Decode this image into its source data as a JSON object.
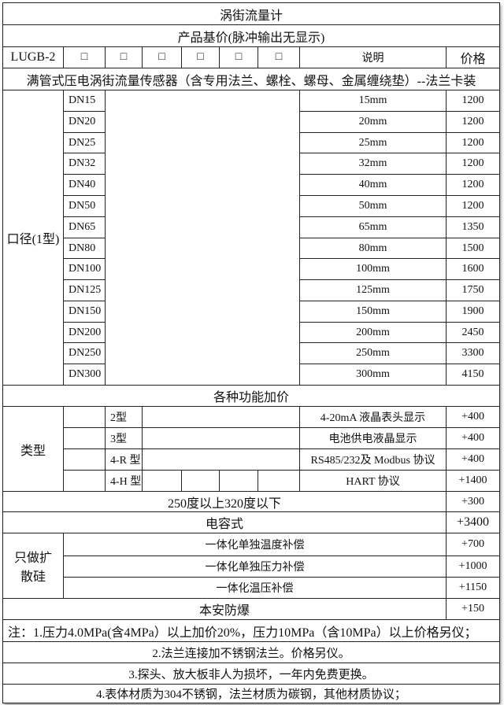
{
  "title": "涡街流量计",
  "base_price_header": "产品基价(脉冲输出无显示)",
  "model_row": {
    "model": "LUGB-2",
    "checkboxes": [
      "□",
      "□",
      "□",
      "□",
      "□",
      "□"
    ],
    "desc_header": "说明",
    "price_header": "价格"
  },
  "sensor_desc": "满管式压电涡街流量传感器（含专用法兰、螺栓、螺母、金属缠绕垫）--法兰卡装",
  "caliber": {
    "label": "口径(1型)",
    "rows": [
      {
        "dn": "DN15",
        "size": "15mm",
        "price": "1200"
      },
      {
        "dn": "DN20",
        "size": "20mm",
        "price": "1200"
      },
      {
        "dn": "DN25",
        "size": "25mm",
        "price": "1200"
      },
      {
        "dn": "DN32",
        "size": "32mm",
        "price": "1200"
      },
      {
        "dn": "DN40",
        "size": "40mm",
        "price": "1200"
      },
      {
        "dn": "DN50",
        "size": "50mm",
        "price": "1200"
      },
      {
        "dn": "DN65",
        "size": "65mm",
        "price": "1350"
      },
      {
        "dn": "DN80",
        "size": "80mm",
        "price": "1500"
      },
      {
        "dn": "DN100",
        "size": "100mm",
        "price": "1600"
      },
      {
        "dn": "DN125",
        "size": "125mm",
        "price": "1750"
      },
      {
        "dn": "DN150",
        "size": "150mm",
        "price": "1900"
      },
      {
        "dn": "DN200",
        "size": "200mm",
        "price": "2450"
      },
      {
        "dn": "DN250",
        "size": "250mm",
        "price": "3300"
      },
      {
        "dn": "DN300",
        "size": "300mm",
        "price": "4150"
      }
    ]
  },
  "options_header": "各种功能加价",
  "types": {
    "label": "类型",
    "rows": [
      {
        "code": "2型",
        "desc": "4-20mA  液晶表头显示",
        "price": "+400"
      },
      {
        "code": "3型",
        "desc": "电池供电液晶显示",
        "price": "+400"
      },
      {
        "code": "4-R 型",
        "desc": "RS485/232及 Modbus 协议",
        "price": "+400"
      },
      {
        "code": "4-H 型",
        "desc": "HART 协议",
        "price": "+1400"
      }
    ]
  },
  "high_temp": {
    "desc": "250度以上320度以下",
    "price": "+300"
  },
  "capacitive": {
    "desc": "电容式",
    "price": "+3400"
  },
  "diffused_silicon": {
    "label": "只做扩散硅",
    "rows": [
      {
        "desc": "一体化单独温度补偿",
        "price": "+700"
      },
      {
        "desc": "一体化单独压力补偿",
        "price": "+1000"
      },
      {
        "desc": "一体化温压补偿",
        "price": "+1150"
      }
    ]
  },
  "explosion_proof": {
    "desc": "本安防爆",
    "price": "+150"
  },
  "notes": [
    "注：1.压力4.0MPa(含4MPa）以上加价20%，压力10MPa（含10MPa）以上价格另仪；",
    "2.法兰连接加不锈钢法兰。价格另仪。",
    "3.探头、放大板非人为损坏，一年内免费更换。",
    "4.表体材质为304不锈钢，法兰材质为碳钢，其他材质协议；"
  ]
}
